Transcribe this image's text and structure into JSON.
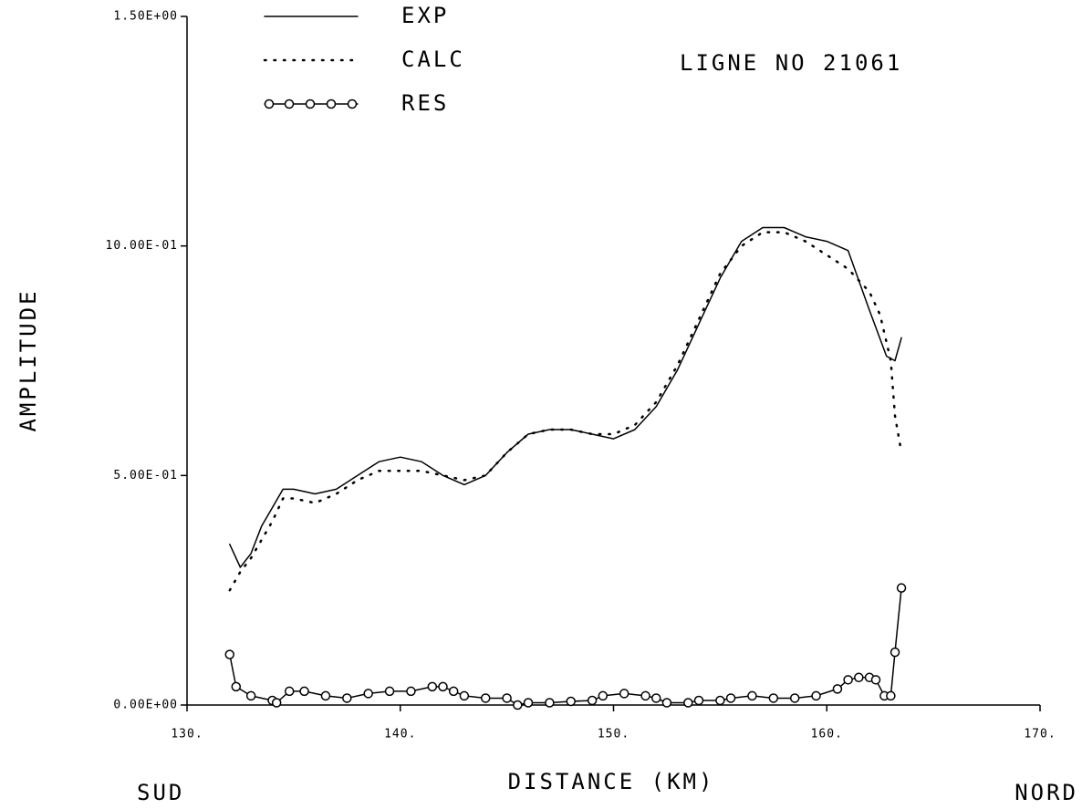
{
  "chart_data": {
    "type": "line",
    "title": "LIGNE NO 21061",
    "x_label": "DISTANCE  (KM)",
    "y_label": "AMPLITUDE",
    "x_left_label": "SUD",
    "x_right_label": "NORD",
    "xlim": [
      130,
      170
    ],
    "ylim": [
      0,
      1.5
    ],
    "xticks": [
      {
        "value": 130,
        "label": "130."
      },
      {
        "value": 140,
        "label": "140."
      },
      {
        "value": 150,
        "label": "150."
      },
      {
        "value": 160,
        "label": "160."
      },
      {
        "value": 170,
        "label": "170."
      }
    ],
    "yticks": [
      {
        "value": 0,
        "label": "0.00E+00"
      },
      {
        "value": 0.5,
        "label": "5.00E-01"
      },
      {
        "value": 1.0,
        "label": "10.00E-01"
      },
      {
        "value": 1.5,
        "label": "1.50E+00"
      }
    ],
    "series": [
      {
        "name": "EXP",
        "color": "#000000",
        "dash": "solid",
        "marker": "none",
        "x": [
          132.0,
          132.5,
          133.0,
          133.5,
          134.0,
          134.5,
          135,
          136,
          137,
          138,
          139,
          140,
          141,
          142,
          143,
          144,
          145,
          146,
          147,
          148,
          149,
          150,
          151,
          152,
          153,
          154,
          155,
          156,
          157,
          158,
          159,
          160,
          161,
          162,
          162.8,
          163.2,
          163.5
        ],
        "values": [
          0.35,
          0.3,
          0.33,
          0.39,
          0.43,
          0.47,
          0.47,
          0.46,
          0.47,
          0.5,
          0.53,
          0.54,
          0.53,
          0.5,
          0.48,
          0.5,
          0.55,
          0.59,
          0.6,
          0.6,
          0.59,
          0.58,
          0.6,
          0.65,
          0.73,
          0.83,
          0.93,
          1.01,
          1.04,
          1.04,
          1.02,
          1.01,
          0.99,
          0.86,
          0.76,
          0.75,
          0.8
        ]
      },
      {
        "name": "CALC",
        "color": "#000000",
        "dash": "dotted",
        "marker": "none",
        "x": [
          132.0,
          132.5,
          133,
          134,
          134.5,
          135,
          136,
          137,
          138,
          139,
          140,
          141,
          142,
          143,
          144,
          145,
          146,
          147,
          148,
          149,
          150,
          151,
          152,
          153,
          154,
          155,
          156,
          157,
          158,
          159,
          160,
          161,
          162,
          162.5,
          163,
          163.2,
          163.5
        ],
        "values": [
          0.25,
          0.29,
          0.32,
          0.4,
          0.45,
          0.45,
          0.44,
          0.46,
          0.49,
          0.51,
          0.51,
          0.51,
          0.5,
          0.49,
          0.5,
          0.55,
          0.59,
          0.6,
          0.6,
          0.59,
          0.59,
          0.61,
          0.66,
          0.74,
          0.84,
          0.94,
          1.0,
          1.03,
          1.03,
          1.01,
          0.98,
          0.95,
          0.9,
          0.85,
          0.75,
          0.63,
          0.55
        ]
      },
      {
        "name": "RES",
        "color": "#000000",
        "dash": "solid",
        "marker": "circle",
        "x": [
          132.0,
          132.3,
          133,
          134,
          134.2,
          134.8,
          135.5,
          136.5,
          137.5,
          138.5,
          139.5,
          140.5,
          141.5,
          142,
          142.5,
          143,
          144,
          145,
          145.5,
          146,
          147,
          148,
          149,
          149.5,
          150.5,
          151.5,
          152,
          152.5,
          153.5,
          154,
          155,
          155.5,
          156.5,
          157.5,
          158.5,
          159.5,
          160.5,
          161,
          161.5,
          162,
          162.3,
          162.7,
          163,
          163.2,
          163.5
        ],
        "values": [
          0.11,
          0.04,
          0.02,
          0.01,
          0.005,
          0.03,
          0.03,
          0.02,
          0.015,
          0.025,
          0.03,
          0.03,
          0.04,
          0.04,
          0.03,
          0.02,
          0.015,
          0.015,
          0.0,
          0.005,
          0.005,
          0.008,
          0.01,
          0.02,
          0.025,
          0.02,
          0.015,
          0.005,
          0.005,
          0.01,
          0.01,
          0.015,
          0.02,
          0.015,
          0.015,
          0.02,
          0.035,
          0.055,
          0.06,
          0.06,
          0.055,
          0.02,
          0.02,
          0.115,
          0.255
        ]
      }
    ]
  }
}
